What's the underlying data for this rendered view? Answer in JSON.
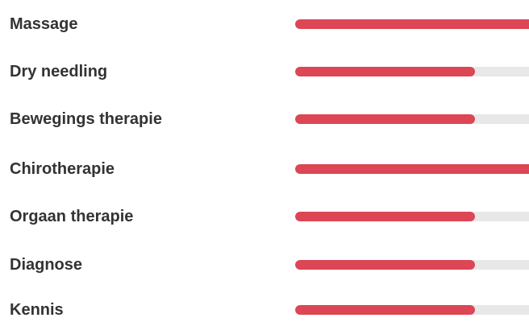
{
  "colors": {
    "accent": "#dc4655",
    "track": "#e8e8e8",
    "label": "#333333"
  },
  "skills": [
    {
      "label": "Massage",
      "level": 1.0
    },
    {
      "label": "Dry needling",
      "level": 0.77
    },
    {
      "label": "Bewegings therapie",
      "level": 0.77
    },
    {
      "label": "Chirotherapie",
      "level": 1.0
    },
    {
      "label": "Orgaan therapie",
      "level": 0.77
    },
    {
      "label": "Diagnose",
      "level": 0.77
    },
    {
      "label": "Kennis",
      "level": 0.77
    }
  ]
}
